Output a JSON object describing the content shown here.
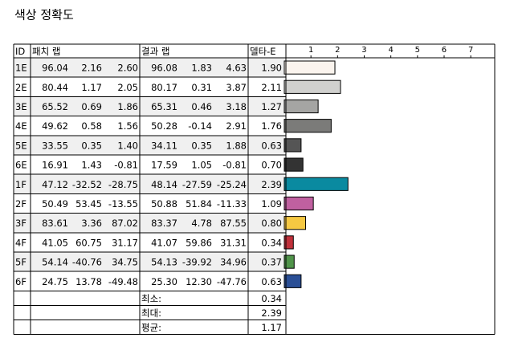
{
  "title": "색상 정확도",
  "table": {
    "headers": [
      "ID",
      "패치 랩",
      "결과 랩",
      "델타-E"
    ],
    "xlim": [
      0,
      7.9
    ],
    "xticks": [
      1,
      2,
      3,
      4,
      5,
      6,
      7
    ],
    "rows": [
      {
        "id": "1E",
        "patch": [
          "96.04",
          "2.16",
          "2.60"
        ],
        "result": [
          "96.08",
          "1.83",
          "4.63"
        ],
        "delta": 1.9,
        "delta_label": "1.90",
        "color": "#fbf4ee"
      },
      {
        "id": "2E",
        "patch": [
          "80.44",
          "1.17",
          "2.05"
        ],
        "result": [
          "80.17",
          "0.31",
          "3.87"
        ],
        "delta": 2.11,
        "delta_label": "2.11",
        "color": "#d0d0ce"
      },
      {
        "id": "3E",
        "patch": [
          "65.52",
          "0.69",
          "1.86"
        ],
        "result": [
          "65.31",
          "0.46",
          "3.18"
        ],
        "delta": 1.27,
        "delta_label": "1.27",
        "color": "#a5a5a3"
      },
      {
        "id": "4E",
        "patch": [
          "49.62",
          "0.58",
          "1.56"
        ],
        "result": [
          "50.28",
          "-0.14",
          "2.91"
        ],
        "delta": 1.76,
        "delta_label": "1.76",
        "color": "#7b7b79"
      },
      {
        "id": "5E",
        "patch": [
          "33.55",
          "0.35",
          "1.40"
        ],
        "result": [
          "34.11",
          "0.35",
          "1.88"
        ],
        "delta": 0.63,
        "delta_label": "0.63",
        "color": "#555555"
      },
      {
        "id": "6E",
        "patch": [
          "16.91",
          "1.43",
          "-0.81"
        ],
        "result": [
          "17.59",
          "1.05",
          "-0.81"
        ],
        "delta": 0.7,
        "delta_label": "0.70",
        "color": "#333333"
      },
      {
        "id": "1F",
        "patch": [
          "47.12",
          "-32.52",
          "-28.75"
        ],
        "result": [
          "48.14",
          "-27.59",
          "-25.24"
        ],
        "delta": 2.39,
        "delta_label": "2.39",
        "color": "#0a8aa0"
      },
      {
        "id": "2F",
        "patch": [
          "50.49",
          "53.45",
          "-13.55"
        ],
        "result": [
          "50.88",
          "51.84",
          "-11.33"
        ],
        "delta": 1.09,
        "delta_label": "1.09",
        "color": "#c060a0"
      },
      {
        "id": "3F",
        "patch": [
          "83.61",
          "3.36",
          "87.02"
        ],
        "result": [
          "83.37",
          "4.78",
          "87.55"
        ],
        "delta": 0.8,
        "delta_label": "0.80",
        "color": "#f5c842"
      },
      {
        "id": "4F",
        "patch": [
          "41.05",
          "60.75",
          "31.17"
        ],
        "result": [
          "41.07",
          "59.86",
          "31.31"
        ],
        "delta": 0.34,
        "delta_label": "0.34",
        "color": "#c0303a"
      },
      {
        "id": "5F",
        "patch": [
          "54.14",
          "-40.76",
          "34.75"
        ],
        "result": [
          "54.13",
          "-39.92",
          "34.96"
        ],
        "delta": 0.37,
        "delta_label": "0.37",
        "color": "#50944a"
      },
      {
        "id": "6F",
        "patch": [
          "24.75",
          "13.78",
          "-49.48"
        ],
        "result": [
          "25.30",
          "12.30",
          "-47.76"
        ],
        "delta": 0.63,
        "delta_label": "0.63",
        "color": "#2a4f96"
      }
    ],
    "summary": [
      {
        "label": "최소:",
        "value": "0.34"
      },
      {
        "label": "최대:",
        "value": "2.39"
      },
      {
        "label": "평균:",
        "value": "1.17"
      }
    ]
  }
}
